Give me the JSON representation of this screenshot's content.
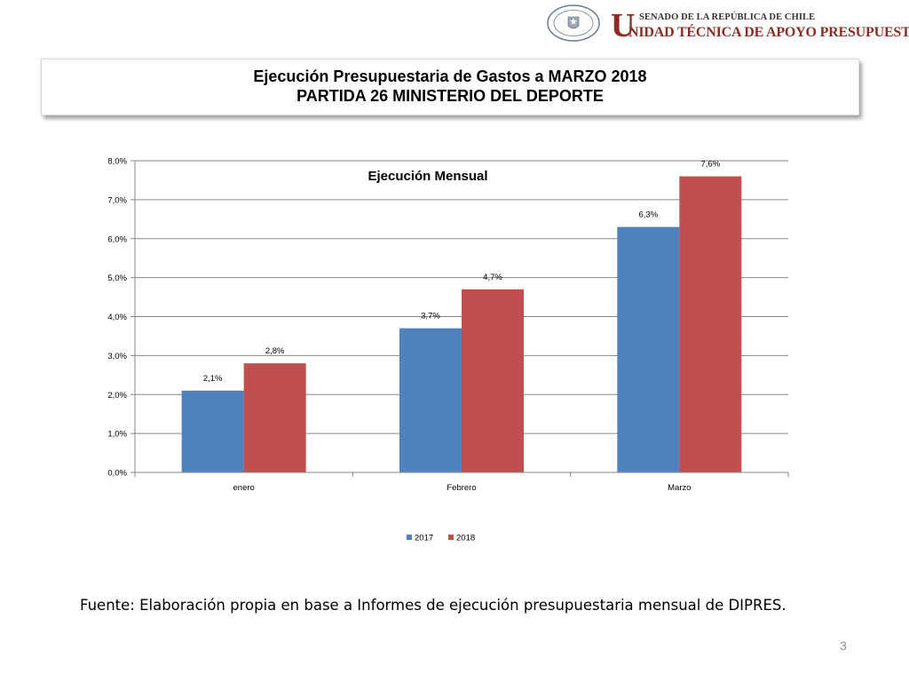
{
  "header": {
    "logo_letter": "U",
    "logo_line1": "SENADO DE LA REPÚBLICA DE CHILE",
    "logo_line2": "NIDAD TÉCNICA DE APOYO PRESUPUESTARIO",
    "seal_text": "REPÚBLICA DE CHILE",
    "seal_sub": "SENADO"
  },
  "title": {
    "line1": "Ejecución Presupuestaria de Gastos a MARZO 2018",
    "line2": "PARTIDA 26 MINISTERIO DEL DEPORTE"
  },
  "chart_data": {
    "type": "bar",
    "title": "Ejecución Mensual",
    "categories": [
      "enero",
      "Febrero",
      "Marzo"
    ],
    "series": [
      {
        "name": "2017",
        "values": [
          2.1,
          3.7,
          6.3
        ],
        "labels": [
          "2,1%",
          "3,7%",
          "6,3%"
        ],
        "color": "#4f81bd"
      },
      {
        "name": "2018",
        "values": [
          2.8,
          4.7,
          7.6
        ],
        "labels": [
          "2,8%",
          "4,7%",
          "7,6%"
        ],
        "color": "#c0504d"
      }
    ],
    "ylim": [
      0,
      8
    ],
    "yticks": [
      "0,0%",
      "1,0%",
      "2,0%",
      "3,0%",
      "4,0%",
      "5,0%",
      "6,0%",
      "7,0%",
      "8,0%"
    ],
    "grid": true,
    "legend": "bottom"
  },
  "footer": {
    "source": "Fuente: Elaboración propia en base  a Informes de ejecución presupuestaria mensual de DIPRES.",
    "page_number": "3"
  }
}
